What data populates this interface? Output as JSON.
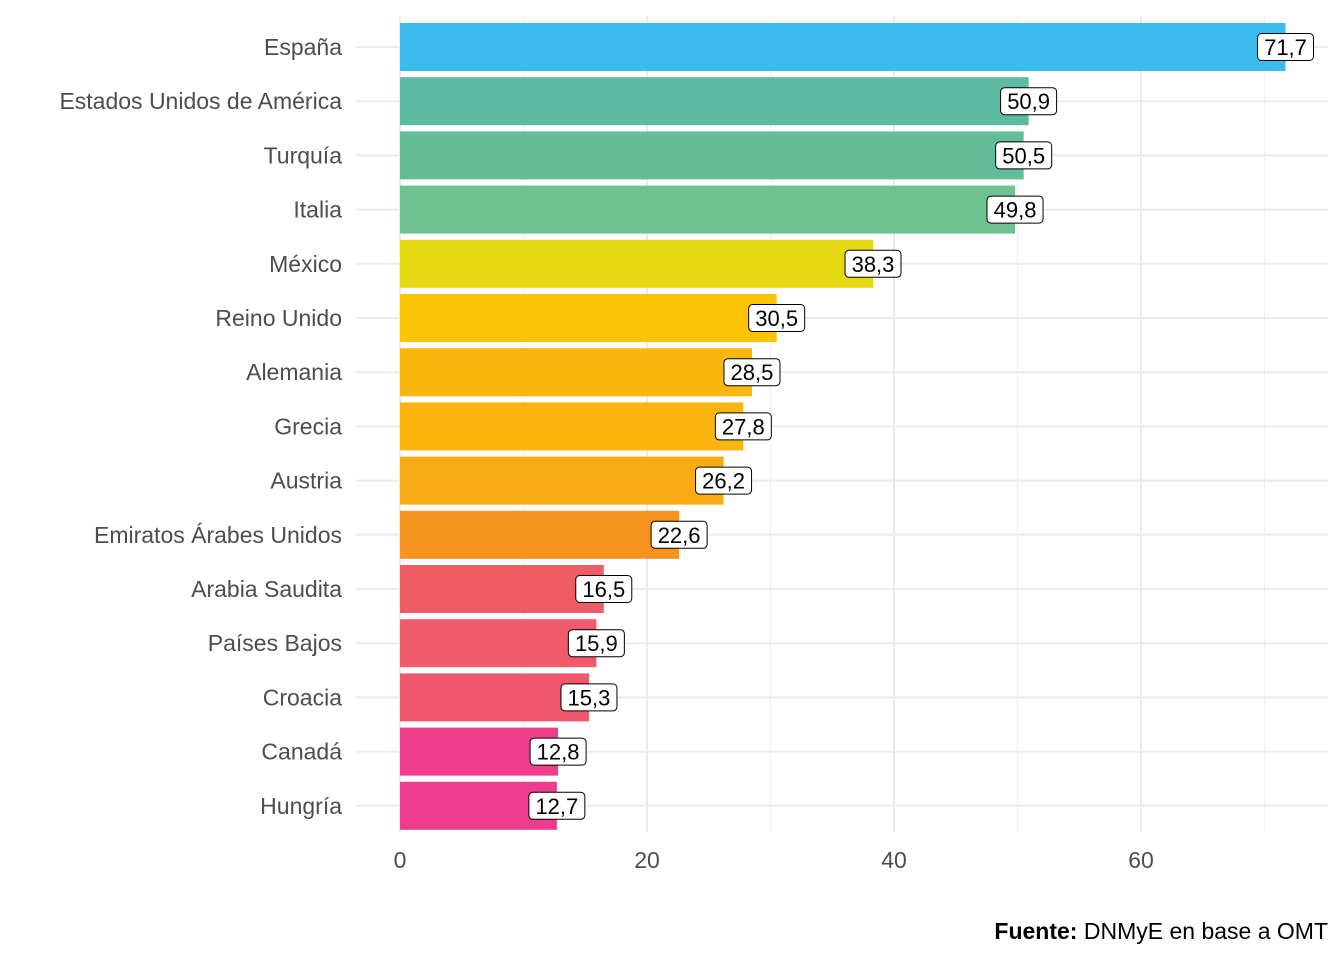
{
  "chart_data": {
    "type": "bar",
    "orientation": "horizontal",
    "title": "",
    "xlabel": "",
    "ylabel": "",
    "xlim": [
      0,
      74
    ],
    "xticks": [
      0,
      20,
      40,
      60
    ],
    "grid": true,
    "categories": [
      "España",
      "Estados Unidos de América",
      "Turquía",
      "Italia",
      "México",
      "Reino Unido",
      "Alemania",
      "Grecia",
      "Austria",
      "Emiratos Árabes Unidos",
      "Arabia Saudita",
      "Países Bajos",
      "Croacia",
      "Canadá",
      "Hungría"
    ],
    "values": [
      71.7,
      50.9,
      50.5,
      49.8,
      38.3,
      30.5,
      28.5,
      27.8,
      26.2,
      22.6,
      16.5,
      15.9,
      15.3,
      12.8,
      12.7
    ],
    "value_labels": [
      "71,7",
      "50,9",
      "50,5",
      "49,8",
      "38,3",
      "30,5",
      "28,5",
      "27,8",
      "26,2",
      "22,6",
      "16,5",
      "15,9",
      "15,3",
      "12,8",
      "12,7"
    ],
    "colors": [
      "#3BBBEB",
      "#5DBBA3",
      "#62BD98",
      "#6FC28F",
      "#E6D811",
      "#FCC404",
      "#F9B70E",
      "#FAB50F",
      "#F8AB12",
      "#F7931F",
      "#F05C64",
      "#F05A6A",
      "#F0566C",
      "#EE3D8B",
      "#EE3D8F"
    ]
  },
  "caption": {
    "bold": "Fuente:",
    "text": " DNMyE en base a OMT"
  }
}
